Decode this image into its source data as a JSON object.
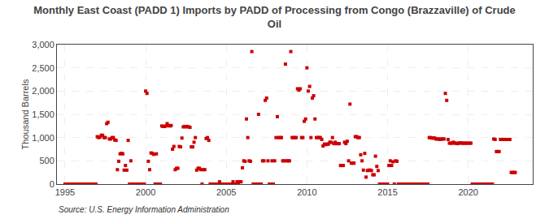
{
  "chart_data": {
    "type": "scatter",
    "title": "Monthly East Coast (PADD 1) Imports by PADD of Processing from Congo (Brazzaville) of Crude\nOil",
    "y_label": "Thousand Barrels",
    "annotations": [
      "Source: U.S. Energy Information Administration"
    ],
    "color": "#cc0000",
    "marker": "square",
    "grid": true,
    "xlim": [
      1994.5,
      2024.0
    ],
    "ylim": [
      0,
      3000
    ],
    "xticks": [
      1995,
      2000,
      2005,
      2010,
      2015,
      2020
    ],
    "yticks": [
      0,
      500,
      {
        "value": 1000,
        "label": "1,000"
      },
      {
        "value": 1500,
        "label": "1,500"
      },
      {
        "value": 2000,
        "label": "2,000"
      },
      {
        "value": 2500,
        "label": "2,500"
      },
      {
        "value": 3000,
        "label": "3,000"
      }
    ],
    "x": [
      1995.0,
      1995.083,
      1995.167,
      1995.25,
      1995.333,
      1995.417,
      1995.5,
      1995.583,
      1995.667,
      1995.75,
      1995.833,
      1995.917,
      1996.0,
      1996.083,
      1996.167,
      1996.25,
      1996.333,
      1996.417,
      1996.5,
      1996.583,
      1996.667,
      1996.75,
      1996.833,
      1996.917,
      1997.0,
      1997.083,
      1997.167,
      1997.25,
      1997.333,
      1997.417,
      1997.5,
      1997.583,
      1997.667,
      1997.75,
      1997.833,
      1997.917,
      1998.0,
      1998.083,
      1998.167,
      1998.25,
      1998.333,
      1998.417,
      1998.5,
      1998.583,
      1998.667,
      1998.75,
      1998.833,
      1998.917,
      1999.0,
      1999.083,
      1999.167,
      1999.25,
      1999.333,
      1999.417,
      1999.5,
      1999.583,
      1999.667,
      1999.75,
      1999.833,
      1999.917,
      2000.0,
      2000.083,
      2000.167,
      2000.25,
      2000.333,
      2000.417,
      2000.5,
      2000.583,
      2000.667,
      2000.75,
      2000.833,
      2000.917,
      2001.0,
      2001.083,
      2001.167,
      2001.25,
      2001.333,
      2001.417,
      2001.5,
      2001.583,
      2001.667,
      2001.75,
      2001.833,
      2001.917,
      2002.0,
      2002.083,
      2002.167,
      2002.25,
      2002.333,
      2002.417,
      2002.5,
      2002.583,
      2002.667,
      2002.75,
      2002.833,
      2002.917,
      2003.0,
      2003.083,
      2003.167,
      2003.25,
      2003.333,
      2003.417,
      2003.5,
      2003.583,
      2003.667,
      2003.75,
      2003.833,
      2003.917,
      2004.0,
      2004.083,
      2004.167,
      2004.25,
      2004.333,
      2004.417,
      2004.5,
      2004.583,
      2004.667,
      2004.75,
      2004.833,
      2004.917,
      2005.0,
      2005.083,
      2005.167,
      2005.25,
      2005.333,
      2005.417,
      2005.5,
      2005.583,
      2005.667,
      2005.75,
      2005.833,
      2005.917,
      2006.0,
      2006.083,
      2006.167,
      2006.25,
      2006.333,
      2006.417,
      2006.5,
      2006.583,
      2006.667,
      2006.75,
      2006.833,
      2006.917,
      2007.0,
      2007.083,
      2007.167,
      2007.25,
      2007.333,
      2007.417,
      2007.5,
      2007.583,
      2007.667,
      2007.75,
      2007.833,
      2007.917,
      2008.0,
      2008.083,
      2008.167,
      2008.25,
      2008.333,
      2008.417,
      2008.5,
      2008.583,
      2008.667,
      2008.75,
      2008.833,
      2008.917,
      2009.0,
      2009.083,
      2009.167,
      2009.25,
      2009.333,
      2009.417,
      2009.5,
      2009.583,
      2009.667,
      2009.75,
      2009.833,
      2009.917,
      2010.0,
      2010.083,
      2010.167,
      2010.25,
      2010.333,
      2010.417,
      2010.5,
      2010.583,
      2010.667,
      2010.75,
      2010.833,
      2010.917,
      2011.0,
      2011.083,
      2011.167,
      2011.25,
      2011.333,
      2011.417,
      2011.5,
      2011.583,
      2011.667,
      2011.75,
      2011.833,
      2011.917,
      2012.0,
      2012.083,
      2012.167,
      2012.25,
      2012.333,
      2012.417,
      2012.5,
      2012.583,
      2012.667,
      2012.75,
      2012.833,
      2012.917,
      2013.0,
      2013.083,
      2013.167,
      2013.25,
      2013.333,
      2013.417,
      2013.5,
      2013.583,
      2013.667,
      2013.75,
      2013.833,
      2013.917,
      2014.0,
      2014.083,
      2014.167,
      2014.25,
      2014.333,
      2014.417,
      2014.5,
      2014.583,
      2014.667,
      2014.75,
      2014.833,
      2014.917,
      2015.0,
      2015.083,
      2015.167,
      2015.25,
      2015.333,
      2015.417,
      2015.5,
      2015.583,
      2015.667,
      2015.75,
      2015.833,
      2015.917,
      2016.0,
      2016.083,
      2016.167,
      2016.25,
      2016.333,
      2016.417,
      2016.5,
      2016.583,
      2016.667,
      2016.75,
      2016.833,
      2016.917,
      2017.0,
      2017.083,
      2017.167,
      2017.25,
      2017.333,
      2017.417,
      2017.5,
      2017.583,
      2017.667,
      2017.75,
      2017.833,
      2017.917,
      2018.0,
      2018.083,
      2018.167,
      2018.25,
      2018.333,
      2018.417,
      2018.5,
      2018.583,
      2018.667,
      2018.75,
      2018.833,
      2018.917,
      2019.0,
      2019.083,
      2019.167,
      2019.25,
      2019.333,
      2019.417,
      2019.5,
      2019.583,
      2019.667,
      2019.75,
      2019.833,
      2019.917,
      2020.0,
      2020.083,
      2020.167,
      2020.25,
      2020.333,
      2020.417,
      2020.5,
      2020.583,
      2020.667,
      2020.75,
      2020.833,
      2020.917,
      2021.0,
      2021.083,
      2021.167,
      2021.25,
      2021.333,
      2021.417,
      2021.5,
      2021.583,
      2021.667,
      2021.75,
      2021.833,
      2021.917,
      2022.0,
      2022.083,
      2022.167,
      2022.25,
      2022.333,
      2022.417,
      2022.5,
      2022.583,
      2022.667,
      2022.75,
      2022.833,
      2022.917
    ],
    "values": [
      0,
      0,
      0,
      0,
      0,
      0,
      0,
      0,
      0,
      0,
      0,
      0,
      0,
      0,
      0,
      0,
      0,
      0,
      0,
      0,
      0,
      0,
      0,
      0,
      1020,
      1000,
      1010,
      1050,
      1050,
      1000,
      1000,
      1300,
      1330,
      970,
      970,
      1000,
      1000,
      950,
      940,
      310,
      490,
      650,
      660,
      650,
      300,
      400,
      300,
      940,
      0,
      500,
      0,
      0,
      0,
      0,
      0,
      0,
      0,
      0,
      0,
      0,
      2000,
      1950,
      490,
      310,
      670,
      660,
      640,
      0,
      650,
      0,
      0,
      0,
      1250,
      1240,
      1240,
      1250,
      1300,
      1260,
      1250,
      1260,
      750,
      810,
      310,
      340,
      340,
      810,
      800,
      990,
      1230,
      1240,
      1230,
      1240,
      1230,
      1220,
      800,
      800,
      900,
      1000,
      300,
      340,
      340,
      310,
      0,
      310,
      310,
      980,
      1000,
      940,
      0,
      0,
      0,
      0,
      0,
      0,
      0,
      50,
      0,
      0,
      0,
      0,
      0,
      0,
      0,
      0,
      0,
      50,
      0,
      0,
      50,
      0,
      50,
      50,
      350,
      500,
      490,
      1400,
      1000,
      500,
      490,
      2850,
      0,
      0,
      0,
      0,
      1500,
      0,
      0,
      500,
      500,
      1800,
      1850,
      500,
      0,
      0,
      500,
      0,
      500,
      1000,
      1450,
      1000,
      1000,
      1000,
      500,
      500,
      2580,
      500,
      500,
      500,
      2850,
      1000,
      1000,
      1000,
      1000,
      2050,
      2020,
      2050,
      1000,
      1000,
      1350,
      1400,
      2500,
      2000,
      2100,
      1000,
      1850,
      1900,
      1400,
      1000,
      1000,
      1000,
      1000,
      960,
      820,
      860,
      850,
      860,
      860,
      900,
      900,
      1000,
      870,
      900,
      870,
      870,
      870,
      400,
      400,
      400,
      900,
      870,
      920,
      500,
      1720,
      450,
      450,
      450,
      1020,
      1020,
      1000,
      1000,
      630,
      500,
      300,
      660,
      150,
      290,
      300,
      300,
      290,
      200,
      200,
      600,
      380,
      290,
      0,
      0,
      0,
      0,
      0,
      0,
      0,
      400,
      500,
      400,
      480,
      0,
      500,
      490,
      0,
      0,
      0,
      0,
      0,
      0,
      0,
      0,
      0,
      0,
      0,
      0,
      0,
      0,
      0,
      0,
      0,
      0,
      0,
      0,
      0,
      0,
      0,
      1000,
      1000,
      990,
      990,
      990,
      970,
      970,
      970,
      960,
      970,
      970,
      970,
      1950,
      1800,
      960,
      880,
      880,
      880,
      900,
      880,
      880,
      870,
      880,
      890,
      880,
      880,
      880,
      880,
      880,
      880,
      880,
      880,
      0,
      0,
      0,
      0,
      0,
      0,
      0,
      0,
      0,
      0,
      0,
      0,
      0,
      0,
      0,
      0,
      970,
      960,
      700,
      700,
      700,
      960,
      960,
      960,
      960,
      960,
      960,
      960,
      960,
      250,
      250,
      250,
      250
    ]
  }
}
